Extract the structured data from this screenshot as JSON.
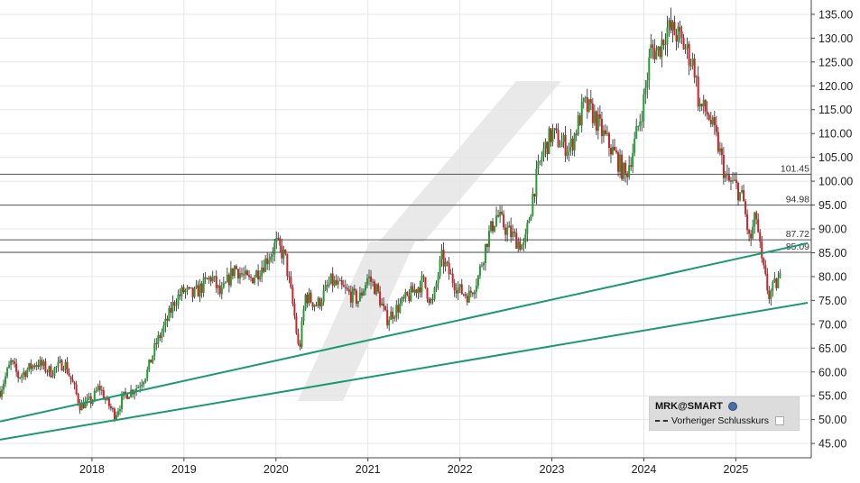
{
  "chart_data": {
    "type": "candlestick",
    "x_ticks": [
      "2018",
      "2019",
      "2020",
      "2021",
      "2022",
      "2023",
      "2024",
      "2025"
    ],
    "x_range": [
      2017.0,
      2025.82
    ],
    "y_ticks": [
      "135.00",
      "130.00",
      "125.00",
      "120.00",
      "115.00",
      "110.00",
      "105.00",
      "100.00",
      "95.00",
      "90.00",
      "85.00",
      "80.00",
      "75.00",
      "70.00",
      "65.00",
      "60.00",
      "55.00",
      "50.00",
      "45.00"
    ],
    "ylim": [
      42,
      138
    ],
    "grid": true,
    "levels": [
      {
        "label": "101.45",
        "value": 101.45
      },
      {
        "label": "94.98",
        "value": 94.98
      },
      {
        "label": "87.72",
        "value": 87.72
      },
      {
        "label": "85.09",
        "value": 85.09
      }
    ],
    "trendlines": [
      {
        "from": [
          2017.0,
          49.6
        ],
        "to": [
          2025.78,
          87.0
        ],
        "color": "#1a9a6c"
      },
      {
        "from": [
          2017.0,
          45.8
        ],
        "to": [
          2025.78,
          74.5
        ],
        "color": "#1a9a6c"
      }
    ],
    "price_path": [
      [
        2017.0,
        56
      ],
      [
        2017.12,
        62
      ],
      [
        2017.2,
        59
      ],
      [
        2017.4,
        62
      ],
      [
        2017.55,
        60
      ],
      [
        2017.7,
        62
      ],
      [
        2017.8,
        57
      ],
      [
        2017.87,
        53
      ],
      [
        2018.0,
        54
      ],
      [
        2018.08,
        57
      ],
      [
        2018.15,
        54
      ],
      [
        2018.25,
        51
      ],
      [
        2018.35,
        55
      ],
      [
        2018.5,
        57
      ],
      [
        2018.6,
        60
      ],
      [
        2018.7,
        66
      ],
      [
        2018.8,
        70
      ],
      [
        2018.9,
        75
      ],
      [
        2019.0,
        77
      ],
      [
        2019.1,
        76
      ],
      [
        2019.2,
        78
      ],
      [
        2019.3,
        80
      ],
      [
        2019.4,
        76
      ],
      [
        2019.55,
        82
      ],
      [
        2019.7,
        79
      ],
      [
        2019.8,
        81
      ],
      [
        2019.95,
        85
      ],
      [
        2020.0,
        87
      ],
      [
        2020.1,
        84
      ],
      [
        2020.2,
        72
      ],
      [
        2020.25,
        64
      ],
      [
        2020.32,
        76
      ],
      [
        2020.45,
        74
      ],
      [
        2020.6,
        79
      ],
      [
        2020.75,
        77
      ],
      [
        2020.9,
        75
      ],
      [
        2021.0,
        80
      ],
      [
        2021.1,
        77
      ],
      [
        2021.2,
        71
      ],
      [
        2021.3,
        73
      ],
      [
        2021.4,
        75
      ],
      [
        2021.5,
        77
      ],
      [
        2021.6,
        79
      ],
      [
        2021.7,
        74
      ],
      [
        2021.8,
        84
      ],
      [
        2021.9,
        80
      ],
      [
        2022.0,
        77
      ],
      [
        2022.1,
        76
      ],
      [
        2022.2,
        80
      ],
      [
        2022.3,
        88
      ],
      [
        2022.4,
        93
      ],
      [
        2022.5,
        90
      ],
      [
        2022.6,
        88
      ],
      [
        2022.7,
        86
      ],
      [
        2022.8,
        98
      ],
      [
        2022.9,
        106
      ],
      [
        2023.0,
        110
      ],
      [
        2023.1,
        108
      ],
      [
        2023.2,
        107
      ],
      [
        2023.35,
        116
      ],
      [
        2023.45,
        114
      ],
      [
        2023.55,
        110
      ],
      [
        2023.7,
        105
      ],
      [
        2023.8,
        101
      ],
      [
        2023.9,
        108
      ],
      [
        2024.0,
        117
      ],
      [
        2024.08,
        128
      ],
      [
        2024.15,
        127
      ],
      [
        2024.25,
        132
      ],
      [
        2024.35,
        131
      ],
      [
        2024.45,
        128
      ],
      [
        2024.55,
        124
      ],
      [
        2024.6,
        116
      ],
      [
        2024.7,
        114
      ],
      [
        2024.8,
        108
      ],
      [
        2024.9,
        100
      ],
      [
        2025.0,
        99
      ],
      [
        2025.08,
        96
      ],
      [
        2025.15,
        87
      ],
      [
        2025.22,
        93
      ],
      [
        2025.28,
        83
      ],
      [
        2025.36,
        76
      ],
      [
        2025.42,
        78
      ],
      [
        2025.5,
        80
      ]
    ]
  },
  "legend": {
    "symbol": "MRK@SMART",
    "previous_close_label": "Vorheriger Schlusskurs"
  }
}
